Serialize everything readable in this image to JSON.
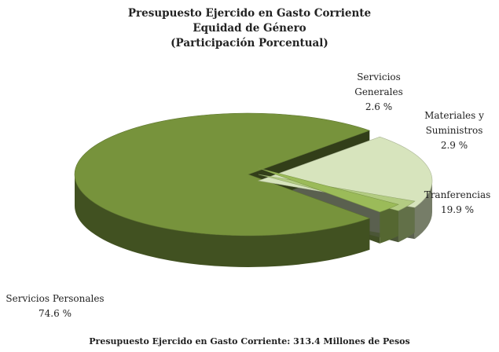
{
  "chart_data": {
    "type": "pie",
    "title": "Presupuesto Ejercido en Gasto Corriente",
    "subtitle": "Equidad de Género",
    "subtitle2": "(Participación Porcentual)",
    "slices": [
      {
        "label_lines": [
          "Servicios Personales"
        ],
        "value_text": "74.6 %",
        "value": 74.6,
        "color": "#77933C"
      },
      {
        "label_lines": [
          "Tranferencias"
        ],
        "value_text": "19.9 %",
        "value": 19.9,
        "color": "#D7E4BD"
      },
      {
        "label_lines": [
          "Materiales y",
          "Suministros"
        ],
        "value_text": "2.9 %",
        "value": 2.9,
        "color": "#B3CC82"
      },
      {
        "label_lines": [
          "Servicios",
          "Generales"
        ],
        "value_text": "2.6 %",
        "value": 2.6,
        "color": "#9BBB59"
      }
    ],
    "footer": "Presupuesto Ejercido  en Gasto Corriente: 313.4 Millones  de Pesos"
  }
}
